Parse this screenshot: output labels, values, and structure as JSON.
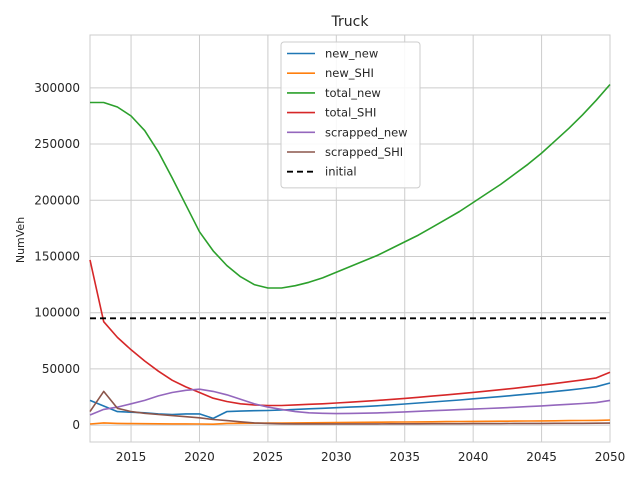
{
  "chart_data": {
    "type": "line",
    "title": "Truck",
    "xlabel": "",
    "ylabel": "NumVeh",
    "xlim": [
      2012,
      2050
    ],
    "ylim": [
      -15000,
      347000
    ],
    "xticks": [
      2015,
      2020,
      2025,
      2030,
      2035,
      2040,
      2045,
      2050
    ],
    "xtick_labels": [
      "2015",
      "2020",
      "2025",
      "2030",
      "2035",
      "2040",
      "2045",
      "2050"
    ],
    "yticks": [
      0,
      50000,
      100000,
      150000,
      200000,
      250000,
      300000
    ],
    "ytick_labels": [
      "0",
      "50000",
      "100000",
      "150000",
      "200000",
      "250000",
      "300000"
    ],
    "grid": true,
    "legend_position": "top-center",
    "x": [
      2012,
      2013,
      2014,
      2015,
      2016,
      2017,
      2018,
      2019,
      2020,
      2021,
      2022,
      2023,
      2024,
      2025,
      2026,
      2027,
      2028,
      2029,
      2030,
      2031,
      2032,
      2033,
      2034,
      2035,
      2036,
      2037,
      2038,
      2039,
      2040,
      2041,
      2042,
      2043,
      2044,
      2045,
      2046,
      2047,
      2048,
      2049,
      2050
    ],
    "series": [
      {
        "name": "new_new",
        "color": "#1f77b4",
        "dash": "solid",
        "values": [
          22000,
          17000,
          12000,
          11500,
          11000,
          10000,
          9500,
          10000,
          10000,
          6000,
          12000,
          12500,
          12800,
          13000,
          13500,
          14000,
          14500,
          15000,
          15500,
          16000,
          16500,
          17200,
          18000,
          18800,
          19700,
          20600,
          21500,
          22400,
          23400,
          24400,
          25400,
          26500,
          27600,
          28800,
          30000,
          31200,
          32600,
          34200,
          37500
        ]
      },
      {
        "name": "new_SHI",
        "color": "#ff7f0e",
        "dash": "solid",
        "values": [
          1000,
          2000,
          1500,
          1400,
          1300,
          1200,
          1100,
          1100,
          1000,
          800,
          1500,
          1600,
          1700,
          1800,
          1900,
          2000,
          2100,
          2200,
          2300,
          2400,
          2500,
          2600,
          2700,
          2800,
          2900,
          3000,
          3100,
          3200,
          3300,
          3400,
          3500,
          3600,
          3700,
          3800,
          3900,
          4000,
          4100,
          4200,
          4500
        ]
      },
      {
        "name": "total_new",
        "color": "#2ca02c",
        "dash": "solid",
        "values": [
          287000,
          287000,
          283000,
          275000,
          262000,
          243000,
          220000,
          196000,
          172000,
          155000,
          142000,
          132000,
          125000,
          122000,
          122000,
          124000,
          127000,
          131000,
          136000,
          141000,
          146000,
          151000,
          157000,
          163000,
          169000,
          176000,
          183000,
          190000,
          198000,
          206000,
          214000,
          223000,
          232000,
          242000,
          253000,
          264000,
          276000,
          289000,
          303000
        ]
      },
      {
        "name": "total_SHI",
        "color": "#d62728",
        "dash": "solid",
        "values": [
          147000,
          92000,
          78000,
          67000,
          57000,
          48000,
          40000,
          34000,
          29000,
          24000,
          21000,
          19000,
          18000,
          17500,
          17500,
          18000,
          18500,
          19000,
          19700,
          20400,
          21200,
          22000,
          22900,
          23800,
          24800,
          25800,
          26900,
          28000,
          29100,
          30300,
          31500,
          32800,
          34200,
          35600,
          37100,
          38600,
          40200,
          42000,
          47000
        ]
      },
      {
        "name": "scrapped_new",
        "color": "#9467bd",
        "dash": "solid",
        "values": [
          9000,
          14000,
          16000,
          19000,
          22000,
          26000,
          29000,
          31000,
          32000,
          30000,
          27000,
          23000,
          19000,
          16000,
          14000,
          12000,
          11000,
          10500,
          10300,
          10400,
          10600,
          10900,
          11300,
          11800,
          12300,
          12800,
          13300,
          13800,
          14300,
          14800,
          15300,
          15900,
          16500,
          17100,
          17800,
          18500,
          19200,
          20000,
          22000
        ]
      },
      {
        "name": "scrapped_SHI",
        "color": "#8c564b",
        "dash": "solid",
        "values": [
          12000,
          30000,
          15000,
          12000,
          10500,
          9500,
          8500,
          7500,
          6500,
          5000,
          4000,
          3000,
          2000,
          1500,
          1200,
          1100,
          1100,
          1100,
          1100,
          1100,
          1100,
          1100,
          1200,
          1200,
          1200,
          1300,
          1300,
          1300,
          1400,
          1400,
          1400,
          1500,
          1500,
          1500,
          1600,
          1600,
          1600,
          1700,
          1800
        ]
      },
      {
        "name": "initial",
        "color": "#000000",
        "dash": "dashed",
        "values": [
          95000,
          95000,
          95000,
          95000,
          95000,
          95000,
          95000,
          95000,
          95000,
          95000,
          95000,
          95000,
          95000,
          95000,
          95000,
          95000,
          95000,
          95000,
          95000,
          95000,
          95000,
          95000,
          95000,
          95000,
          95000,
          95000,
          95000,
          95000,
          95000,
          95000,
          95000,
          95000,
          95000,
          95000,
          95000,
          95000,
          95000,
          95000,
          95000
        ]
      }
    ]
  }
}
